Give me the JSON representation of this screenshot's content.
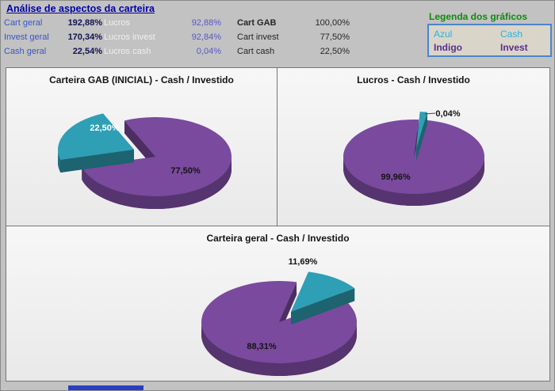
{
  "header": {
    "title": "Análise de aspectos da carteira",
    "stats": {
      "col1": [
        {
          "label": "Cart geral",
          "value": "192,88%"
        },
        {
          "label": "Invest geral",
          "value": "170,34%"
        },
        {
          "label": "Cash geral",
          "value": "22,54%"
        }
      ],
      "col2": [
        {
          "label": "Lucros",
          "value": "92,88%"
        },
        {
          "label": "Lucros invest",
          "value": "92,84%"
        },
        {
          "label": "Lucros cash",
          "value": "0,04%"
        }
      ],
      "col3": [
        {
          "label": "Cart GAB",
          "value": "100,00%"
        },
        {
          "label": "Cart invest",
          "value": "77,50%"
        },
        {
          "label": "Cart cash",
          "value": "22,50%"
        }
      ]
    },
    "legend": {
      "title": "Legenda dos gráficos",
      "rows": [
        {
          "name": "Azul",
          "meaning": "Cash",
          "color": "#2fb0dc"
        },
        {
          "name": "Indigo",
          "meaning": "Invest",
          "color": "#5b2d8e"
        }
      ]
    }
  },
  "chart_data": [
    {
      "type": "pie",
      "title": "Carteira GAB (INICIAL) - Cash / Investido",
      "labels": [
        "Cash",
        "Investido"
      ],
      "values": [
        22.5,
        77.5
      ],
      "value_labels": [
        "22,50%",
        "77,50%"
      ],
      "colors": [
        "#2f9fb5",
        "#7a4a9e"
      ]
    },
    {
      "type": "pie",
      "title": "Lucros - Cash / Investido",
      "labels": [
        "Cash",
        "Investido"
      ],
      "values": [
        0.04,
        99.96
      ],
      "value_labels": [
        "0,04%",
        "99,96%"
      ],
      "colors": [
        "#2f9fb5",
        "#7a4a9e"
      ]
    },
    {
      "type": "pie",
      "title": "Carteira geral - Cash / Investido",
      "labels": [
        "Cash",
        "Investido"
      ],
      "values": [
        11.69,
        88.31
      ],
      "value_labels": [
        "11,69%",
        "88,31%"
      ],
      "colors": [
        "#2f9fb5",
        "#7a4a9e"
      ]
    }
  ]
}
